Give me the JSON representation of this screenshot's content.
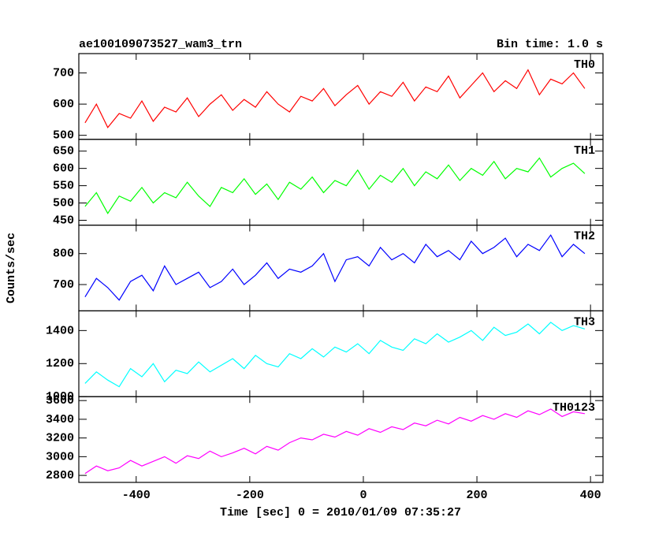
{
  "chart_data": {
    "type": "line",
    "title": "ae100109073527_wam3_trn",
    "subtitle": "Bin time: 1.0 s",
    "x_label": "Time [sec] 0 = 2010/01/09 07:35:27",
    "y_label": "Counts/sec",
    "x": [
      -490,
      -470,
      -450,
      -430,
      -410,
      -390,
      -370,
      -350,
      -330,
      -310,
      -290,
      -270,
      -250,
      -230,
      -210,
      -190,
      -170,
      -150,
      -130,
      -110,
      -90,
      -70,
      -50,
      -30,
      -10,
      10,
      30,
      50,
      70,
      90,
      110,
      130,
      150,
      170,
      190,
      210,
      230,
      250,
      270,
      290,
      310,
      330,
      350,
      370,
      390
    ],
    "xlim": [
      -501,
      422
    ],
    "xticks": [
      -400,
      -200,
      0,
      200,
      400
    ],
    "panels": [
      {
        "name": "TH0",
        "color": "#ff0000",
        "ylim": [
          487,
          762
        ],
        "yticks": [
          500,
          600,
          700
        ],
        "values": [
          540,
          600,
          525,
          570,
          555,
          610,
          545,
          590,
          575,
          620,
          560,
          600,
          630,
          580,
          615,
          590,
          640,
          600,
          575,
          625,
          610,
          650,
          595,
          630,
          660,
          600,
          640,
          625,
          670,
          610,
          655,
          640,
          690,
          620,
          660,
          700,
          640,
          675,
          650,
          710,
          630,
          680,
          665,
          700,
          650
        ]
      },
      {
        "name": "TH1",
        "color": "#00ff00",
        "ylim": [
          436,
          684
        ],
        "yticks": [
          450,
          500,
          550,
          600,
          650
        ],
        "values": [
          490,
          530,
          470,
          520,
          505,
          545,
          500,
          530,
          515,
          560,
          520,
          490,
          545,
          530,
          570,
          525,
          555,
          510,
          560,
          540,
          575,
          530,
          565,
          550,
          595,
          540,
          580,
          560,
          600,
          550,
          590,
          570,
          610,
          565,
          600,
          580,
          620,
          570,
          600,
          590,
          630,
          575,
          600,
          615,
          585
        ]
      },
      {
        "name": "TH2",
        "color": "#0000ff",
        "ylim": [
          615,
          892
        ],
        "yticks": [
          700,
          800
        ],
        "values": [
          660,
          720,
          690,
          650,
          710,
          730,
          680,
          760,
          700,
          720,
          740,
          690,
          710,
          750,
          700,
          730,
          770,
          720,
          750,
          740,
          760,
          800,
          710,
          780,
          790,
          760,
          820,
          780,
          800,
          770,
          830,
          790,
          810,
          780,
          840,
          800,
          820,
          850,
          790,
          830,
          810,
          860,
          790,
          830,
          800
        ]
      },
      {
        "name": "TH3",
        "color": "#00ffff",
        "ylim": [
          1000,
          1519
        ],
        "yticks": [
          1000,
          1200,
          1400
        ],
        "values": [
          1080,
          1150,
          1100,
          1060,
          1170,
          1120,
          1200,
          1090,
          1160,
          1140,
          1210,
          1150,
          1190,
          1230,
          1170,
          1250,
          1200,
          1180,
          1260,
          1230,
          1290,
          1240,
          1300,
          1270,
          1320,
          1260,
          1340,
          1300,
          1280,
          1350,
          1320,
          1380,
          1330,
          1360,
          1400,
          1340,
          1420,
          1370,
          1390,
          1440,
          1380,
          1450,
          1400,
          1430,
          1410
        ]
      },
      {
        "name": "TH0123",
        "color": "#ff00ff",
        "ylim": [
          2725,
          3642
        ],
        "yticks": [
          2800,
          3000,
          3200,
          3400,
          3600
        ],
        "values": [
          2820,
          2900,
          2850,
          2880,
          2960,
          2900,
          2950,
          3000,
          2930,
          3010,
          2980,
          3060,
          3000,
          3040,
          3090,
          3030,
          3110,
          3070,
          3150,
          3200,
          3180,
          3240,
          3210,
          3270,
          3230,
          3300,
          3260,
          3320,
          3290,
          3360,
          3330,
          3390,
          3350,
          3420,
          3380,
          3440,
          3400,
          3460,
          3420,
          3490,
          3450,
          3510,
          3430,
          3480,
          3460
        ]
      }
    ]
  }
}
